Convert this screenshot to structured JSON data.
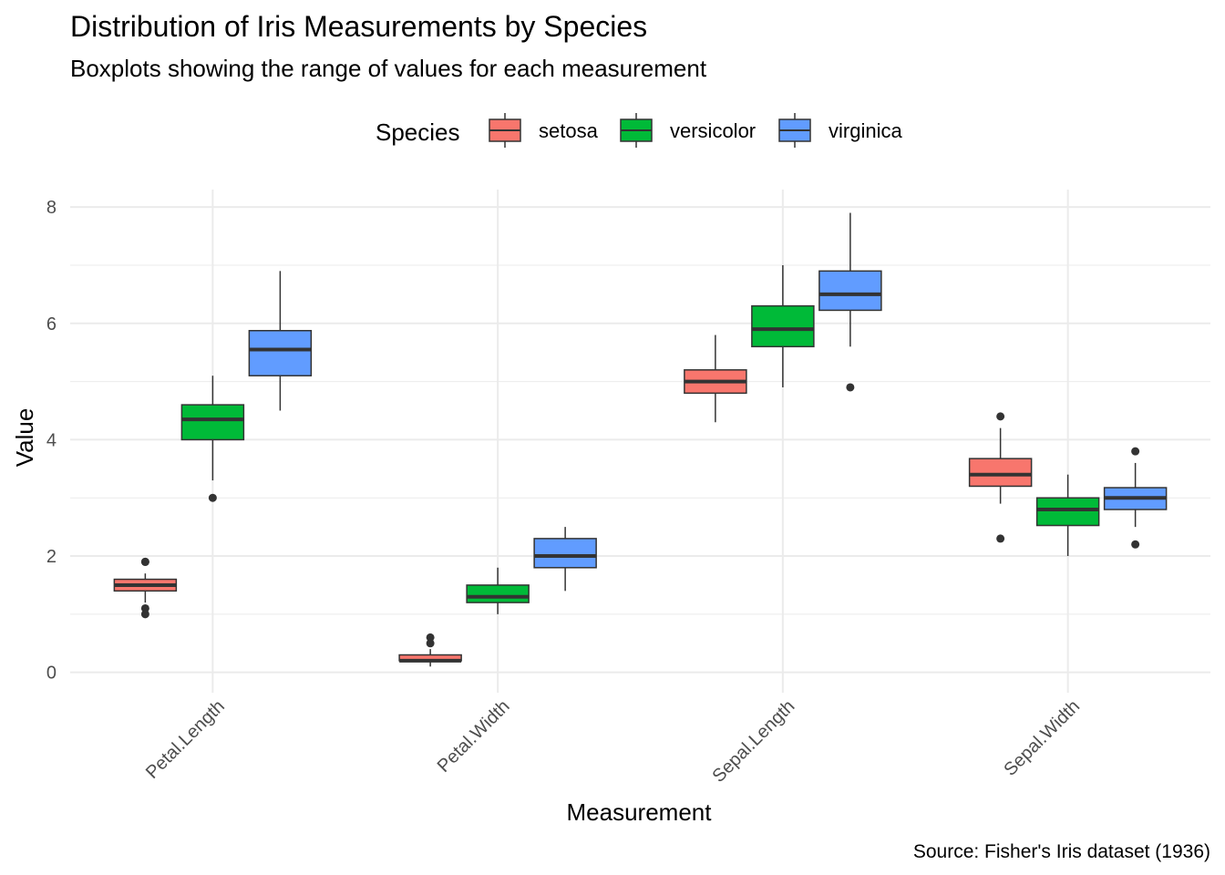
{
  "chart_data": {
    "type": "boxplot",
    "title": "Distribution of Iris Measurements by Species",
    "subtitle": "Boxplots showing the range of values for each measurement",
    "caption": "Source: Fisher's Iris dataset (1936)",
    "xlabel": "Measurement",
    "ylabel": "Value",
    "ylim": [
      -0.35,
      8.3
    ],
    "yticks": [
      0,
      2,
      4,
      6,
      8
    ],
    "grid": true,
    "legend": {
      "title": "Species",
      "position": "top",
      "entries": [
        "setosa",
        "versicolor",
        "virginica"
      ]
    },
    "categories": [
      "Petal.Length",
      "Petal.Width",
      "Sepal.Length",
      "Sepal.Width"
    ],
    "series": [
      {
        "name": "setosa",
        "color": "#F8766D",
        "boxes": [
          {
            "min": 1.2,
            "q1": 1.4,
            "median": 1.5,
            "q3": 1.6,
            "max": 1.7,
            "outliers": [
              1.9,
              1.9,
              1.1,
              1.0
            ]
          },
          {
            "min": 0.1,
            "q1": 0.2,
            "median": 0.2,
            "q3": 0.3,
            "max": 0.4,
            "outliers": [
              0.5,
              0.6
            ]
          },
          {
            "min": 4.3,
            "q1": 4.8,
            "median": 5.0,
            "q3": 5.2,
            "max": 5.8,
            "outliers": []
          },
          {
            "min": 2.9,
            "q1": 3.2,
            "median": 3.4,
            "q3": 3.675,
            "max": 4.2,
            "outliers": [
              4.4,
              2.3
            ]
          }
        ]
      },
      {
        "name": "versicolor",
        "color": "#00BA38",
        "boxes": [
          {
            "min": 3.3,
            "q1": 4.0,
            "median": 4.35,
            "q3": 4.6,
            "max": 5.1,
            "outliers": [
              3.0
            ]
          },
          {
            "min": 1.0,
            "q1": 1.2,
            "median": 1.3,
            "q3": 1.5,
            "max": 1.8,
            "outliers": []
          },
          {
            "min": 4.9,
            "q1": 5.6,
            "median": 5.9,
            "q3": 6.3,
            "max": 7.0,
            "outliers": []
          },
          {
            "min": 2.0,
            "q1": 2.525,
            "median": 2.8,
            "q3": 3.0,
            "max": 3.4,
            "outliers": []
          }
        ]
      },
      {
        "name": "virginica",
        "color": "#619CFF",
        "boxes": [
          {
            "min": 4.5,
            "q1": 5.1,
            "median": 5.55,
            "q3": 5.875,
            "max": 6.9,
            "outliers": []
          },
          {
            "min": 1.4,
            "q1": 1.8,
            "median": 2.0,
            "q3": 2.3,
            "max": 2.5,
            "outliers": []
          },
          {
            "min": 5.6,
            "q1": 6.225,
            "median": 6.5,
            "q3": 6.9,
            "max": 7.9,
            "outliers": [
              4.9
            ]
          },
          {
            "min": 2.5,
            "q1": 2.8,
            "median": 3.0,
            "q3": 3.175,
            "max": 3.6,
            "outliers": [
              3.8,
              2.2
            ]
          }
        ]
      }
    ]
  }
}
